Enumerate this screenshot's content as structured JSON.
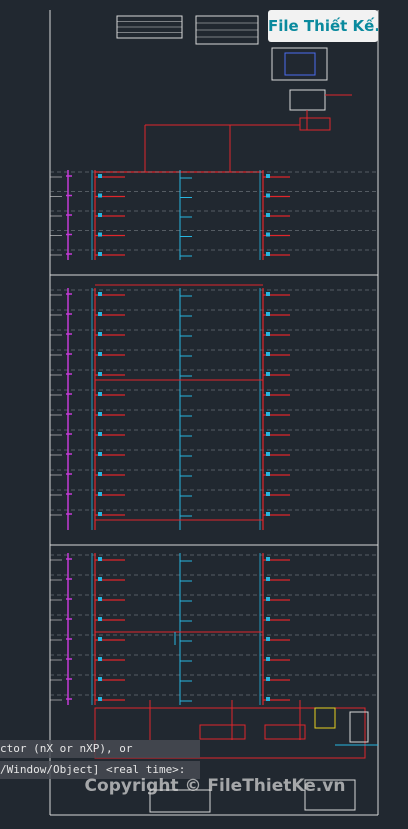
{
  "logo": {
    "text": "File Thiết Kế.vn"
  },
  "command_line": {
    "lines": [
      "ctor (nX or nXP), or",
      "/Window/Object] <real time>:"
    ]
  },
  "watermark": {
    "text": "Copyright © FileThietKe.vn"
  }
}
